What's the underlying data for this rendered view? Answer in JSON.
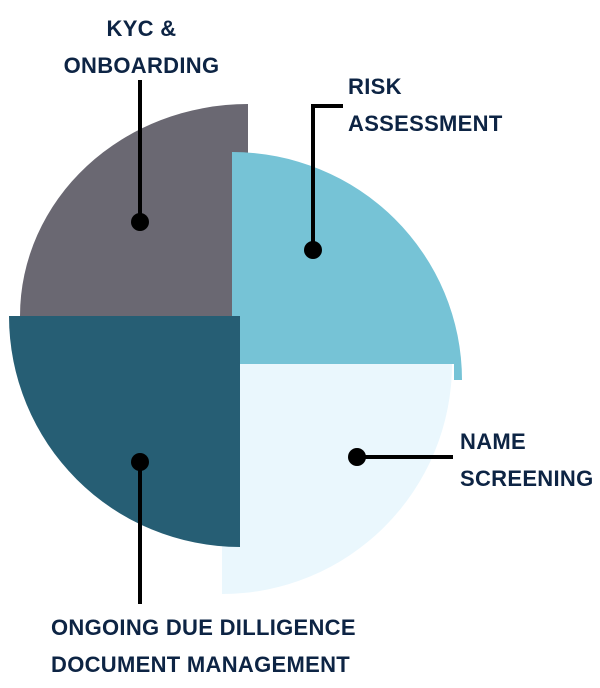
{
  "segments": [
    {
      "id": "kyc-onboarding",
      "lines": [
        "KYC &",
        "ONBOARDING"
      ],
      "color": "#6a6872"
    },
    {
      "id": "risk-assessment",
      "lines": [
        "RISK",
        "ASSESSMENT"
      ],
      "color": "#76c3d6"
    },
    {
      "id": "name-screening",
      "lines": [
        "NAME",
        "SCREENING"
      ],
      "color": "#eaf7fd"
    },
    {
      "id": "ongoing-due-diligence",
      "lines": [
        "ONGOING DUE DILLIGENCE",
        "DOCUMENT MANAGEMENT"
      ],
      "color": "#265e74"
    }
  ],
  "label_color": "#0d2444",
  "connector_color": "#000000"
}
